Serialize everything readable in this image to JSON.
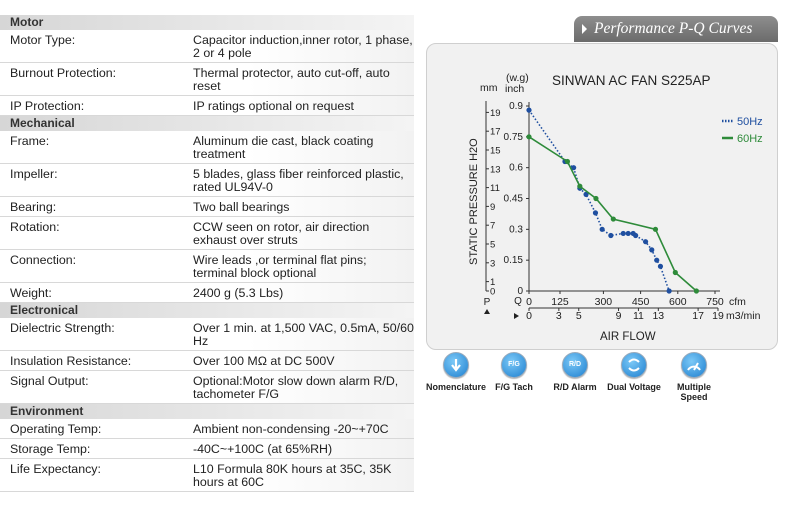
{
  "specs": {
    "motor_header": "Motor",
    "motor_type_label": "Motor Type:",
    "motor_type_value": "Capacitor induction,inner rotor, 1 phase, 2 or 4 pole",
    "burnout_label": "Burnout Protection:",
    "burnout_value": "Thermal protector, auto cut-off, auto reset",
    "ip_label": "IP Protection:",
    "ip_value": "IP ratings optional on request",
    "mechanical_header": "Mechanical",
    "frame_label": "Frame:",
    "frame_value": "Aluminum die cast, black coating treatment",
    "impeller_label": "Impeller:",
    "impeller_value": "5 blades, glass fiber reinforced plastic, rated UL94V-0",
    "bearing_label": "Bearing:",
    "bearing_value": "Two ball bearings",
    "rotation_label": "Rotation:",
    "rotation_value": "CCW seen on rotor, air direction exhaust over struts",
    "connection_label": "Connection:",
    "connection_value": "Wire leads ,or terminal flat pins; terminal block optional",
    "weight_label": "Weight:",
    "weight_value": "2400 g (5.3 Lbs)",
    "electrical_header": "Electronical",
    "dielectric_label": "Dielectric Strength:",
    "dielectric_value": "Over 1 min. at 1,500 VAC, 0.5mA, 50/60 Hz",
    "insulation_label": "Insulation Resistance:",
    "insulation_value": "Over 100 MΩ at DC 500V",
    "signal_label": "Signal Output:",
    "signal_value": "Optional:Motor slow down alarm R/D, tachometer F/G",
    "environment_header": "Environment",
    "op_temp_label": "Operating Temp:",
    "op_temp_value": "Ambient non-condensing -20~+70C",
    "storage_label": "Storage Temp:",
    "storage_value": "-40C~+100C (at 65%RH)",
    "life_label": "Life Expectancy:",
    "life_value": "L10 Formula 80K hours at 35C, 35K hours at 60C"
  },
  "panel_header": "Performance P-Q Curves",
  "icons": [
    {
      "name": "down-arrow-icon",
      "badge": "",
      "label": "Nomenclature"
    },
    {
      "name": "fg-icon",
      "badge": "F/G",
      "label": "F/G Tach"
    },
    {
      "name": "rd-icon",
      "badge": "R/D",
      "label": "R/D Alarm"
    },
    {
      "name": "dual-voltage-icon",
      "badge": "",
      "label": "Dual Voltage"
    },
    {
      "name": "multiple-speed-icon",
      "badge": "",
      "label": "Multiple Speed"
    }
  ],
  "chart_data": {
    "type": "line",
    "title": "SINWAN AC FAN S225AP",
    "ylabel": "STATIC PRESSURE H2O",
    "xlabel": "AIR FLOW",
    "y_unit_left": "mm",
    "y_unit_right_top": "(w.g)",
    "y_unit_right": "inch",
    "y_side_letter": "P",
    "x_side_letter_q": "Q",
    "x_unit_cfm": "cfm",
    "x_unit_m3": "m3/min",
    "xlim": [
      0,
      750
    ],
    "ylim": [
      0,
      0.9
    ],
    "y_ticks_inch": [
      "0.9",
      "0.75",
      "0.6",
      "0.45",
      "0.3",
      "0.15",
      "0"
    ],
    "y_tick_values": [
      0.9,
      0.75,
      0.6,
      0.45,
      0.3,
      0.15,
      0
    ],
    "y_ticks_mm": [
      "19",
      "17",
      "15",
      "13",
      "11",
      "9",
      "7",
      "5",
      "3",
      "1",
      "0"
    ],
    "y_ticks_mm_values": [
      19,
      17,
      15,
      13,
      11,
      9,
      7,
      5,
      3,
      1,
      0
    ],
    "x_ticks_cfm": [
      "0",
      "125",
      "300",
      "450",
      "600",
      "750"
    ],
    "x_ticks_cfm_values": [
      0,
      125,
      300,
      450,
      600,
      750
    ],
    "x_ticks_m3": [
      "0",
      "3",
      "5",
      "9",
      "11",
      "13",
      "17",
      "19"
    ],
    "x_ticks_m3_values": [
      0,
      3,
      5,
      9,
      11,
      13,
      17,
      19
    ],
    "grid": false,
    "legend_position": "right",
    "series": [
      {
        "name": "50Hz",
        "color": "#1f4fa0",
        "style": "dotted",
        "x": [
          0,
          145,
          180,
          205,
          230,
          268,
          295,
          330,
          380,
          400,
          420,
          430,
          470,
          495,
          515,
          530,
          565
        ],
        "y": [
          0.88,
          0.63,
          0.6,
          0.5,
          0.47,
          0.38,
          0.3,
          0.27,
          0.28,
          0.28,
          0.28,
          0.27,
          0.24,
          0.2,
          0.15,
          0.12,
          0
        ]
      },
      {
        "name": "60Hz",
        "color": "#2e8b3a",
        "style": "solid",
        "x": [
          0,
          155,
          205,
          270,
          340,
          510,
          590,
          675
        ],
        "y": [
          0.75,
          0.63,
          0.51,
          0.45,
          0.35,
          0.3,
          0.09,
          0
        ]
      }
    ]
  }
}
